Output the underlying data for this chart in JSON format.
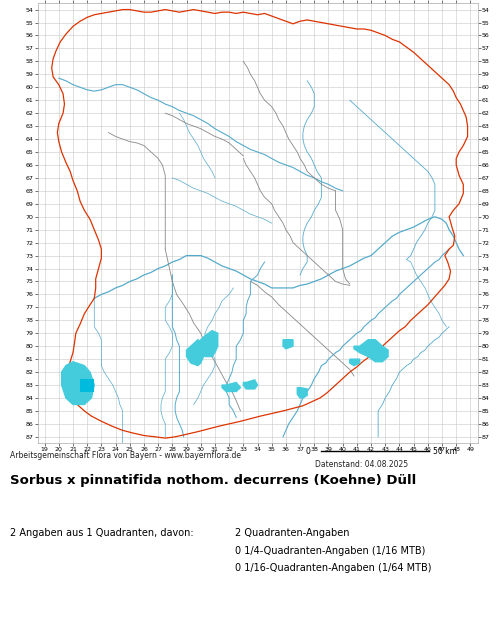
{
  "title": "Sorbus x pinnatifida nothom. decurrens (Koehne) Düll",
  "subtitle_left": "Arbeitsgemeinschaft Flora von Bayern - www.bayernflora.de",
  "subtitle_right": "Datenstand: 04.08.2025",
  "stats_left": "2 Angaben aus 1 Quadranten, davon:",
  "stats_right": [
    "2 Quadranten-Angaben",
    "0 1/4-Quadranten-Angaben (1/16 MTB)",
    "0 1/16-Quadranten-Angaben (1/64 MTB)"
  ],
  "x_min": 19,
  "x_max": 49,
  "y_min": 54,
  "y_max": 87,
  "x_ticks": [
    19,
    20,
    21,
    22,
    23,
    24,
    25,
    26,
    27,
    28,
    29,
    30,
    31,
    32,
    33,
    34,
    35,
    36,
    37,
    38,
    39,
    40,
    41,
    42,
    43,
    44,
    45,
    46,
    47,
    48,
    49
  ],
  "y_ticks": [
    54,
    55,
    56,
    57,
    58,
    59,
    60,
    61,
    62,
    63,
    64,
    65,
    66,
    67,
    68,
    69,
    70,
    71,
    72,
    73,
    74,
    75,
    76,
    77,
    78,
    79,
    80,
    81,
    82,
    83,
    84,
    85,
    86,
    87
  ],
  "bg_color": "#ffffff",
  "grid_color": "#c8c8c8",
  "border_color_outer": "#dd3300",
  "border_color_inner": "#888888",
  "river_color": "#55aacc",
  "lake_color": "#44ccdd",
  "occurrence_color": "#00bbdd",
  "fig_width": 5.0,
  "fig_height": 6.2,
  "dpi": 100
}
